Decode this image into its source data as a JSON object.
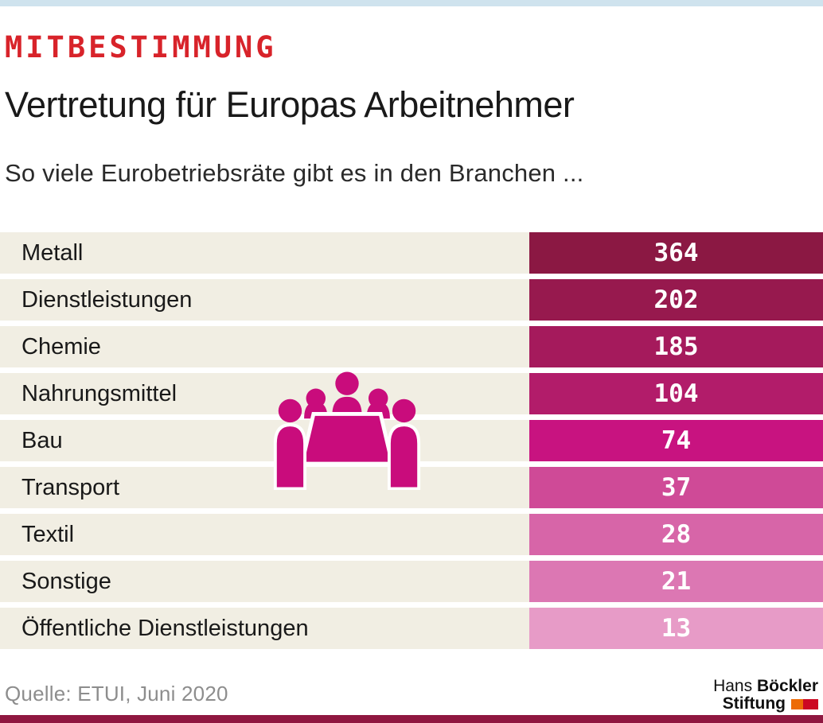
{
  "header": {
    "kicker": "MITBESTIMMUNG",
    "title": "Vertretung für Europas Arbeitnehmer",
    "subtitle": "So viele Eurobetriebsräte gibt es in den Branchen ..."
  },
  "chart_data": {
    "type": "bar",
    "orientation": "horizontal",
    "title": "So viele Eurobetriebsräte gibt es in den Branchen ...",
    "categories": [
      "Metall",
      "Dienstleistungen",
      "Chemie",
      "Nahrungsmittel",
      "Bau",
      "Transport",
      "Textil",
      "Sonstige",
      "Öffentliche Dienstleistungen"
    ],
    "values": [
      364,
      202,
      185,
      104,
      74,
      37,
      28,
      21,
      13
    ],
    "bar_colors": [
      "#8b1843",
      "#97194e",
      "#a51a5c",
      "#b21c6a",
      "#c81380",
      "#cf4a97",
      "#d765a8",
      "#dc77b3",
      "#e79bc7"
    ],
    "row_background": "#f1eee3",
    "grid": false,
    "legend_position": "none"
  },
  "icon": {
    "name": "meeting-table-pictogram",
    "color": "#c90c7c"
  },
  "footer": {
    "source": "Quelle: ETUI, Juni 2020",
    "logo": {
      "name_regular": "Hans",
      "name_bold": "Böckler",
      "line2": "Stiftung"
    }
  },
  "colors": {
    "top_bar": "#cfe3ee",
    "bottom_bar": "#8f1740",
    "kicker_red": "#d8232a",
    "flag_orange": "#ed6b06",
    "flag_red": "#cc0822"
  }
}
